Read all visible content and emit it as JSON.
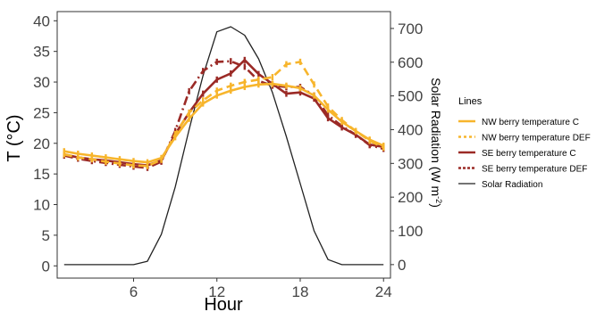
{
  "chart_data": {
    "type": "line",
    "xlabel": "Hour",
    "ylabel_left": "T (°C)",
    "ylabel_right_main": "Solar Radiation (W m",
    "ylabel_right_sup": "-2",
    "ylabel_right_close": ")",
    "xlim": [
      0.5,
      24.5
    ],
    "ylim_left": [
      -2,
      41.5
    ],
    "ylim_right": [
      -40,
      750
    ],
    "x_ticks": [
      6,
      12,
      18,
      24
    ],
    "y_left_ticks": [
      0,
      5,
      10,
      15,
      20,
      25,
      30,
      35,
      40
    ],
    "y_right_ticks": [
      0,
      100,
      200,
      300,
      400,
      500,
      600,
      700
    ],
    "grid": false,
    "legend": {
      "title": "Lines",
      "placement": "right",
      "entries": [
        {
          "label": "NW berry temperature C",
          "series": 0
        },
        {
          "label": "NW berry temperature DEF",
          "series": 1
        },
        {
          "label": "SE berry temperature C",
          "series": 2
        },
        {
          "label": "SE berry temperature DEF",
          "series": 3
        },
        {
          "label": "Solar Radiation",
          "series": 4
        }
      ]
    },
    "series": [
      {
        "name": "NW berry temperature C",
        "axis": "left",
        "color": "#f7b52c",
        "style": "solid",
        "x": [
          1,
          2,
          3,
          4,
          5,
          6,
          7,
          8,
          9,
          10,
          11,
          12,
          13,
          14,
          15,
          16,
          17,
          18,
          19,
          20,
          21,
          22,
          23,
          24
        ],
        "y": [
          18.7,
          18.3,
          18.0,
          17.7,
          17.4,
          17.1,
          16.9,
          17.6,
          21.0,
          24.0,
          26.5,
          27.8,
          28.6,
          29.2,
          29.6,
          29.7,
          29.4,
          29.0,
          27.8,
          25.5,
          23.5,
          22.0,
          20.6,
          19.6
        ]
      },
      {
        "name": "NW berry temperature DEF",
        "axis": "left",
        "color": "#f7b52c",
        "style": "dash",
        "x": [
          1,
          2,
          3,
          4,
          5,
          6,
          7,
          8,
          9,
          10,
          11,
          12,
          13,
          14,
          15,
          16,
          17,
          18,
          19,
          20,
          21,
          22,
          23,
          24
        ],
        "y": [
          18.2,
          17.7,
          17.4,
          17.0,
          16.7,
          16.4,
          16.3,
          17.3,
          21.5,
          25.0,
          27.0,
          28.6,
          29.4,
          30.0,
          30.4,
          30.8,
          32.9,
          33.3,
          29.6,
          26.0,
          23.8,
          22.0,
          20.4,
          19.3
        ]
      },
      {
        "name": "SE berry temperature C",
        "axis": "left",
        "color": "#9b2a26",
        "style": "solid",
        "x": [
          1,
          2,
          3,
          4,
          5,
          6,
          7,
          8,
          9,
          10,
          11,
          12,
          13,
          14,
          15,
          16,
          17,
          18,
          19,
          20,
          21,
          22,
          23,
          24
        ],
        "y": [
          18.2,
          17.7,
          17.4,
          17.2,
          16.9,
          16.6,
          16.4,
          17.2,
          21.5,
          25.0,
          28.1,
          30.4,
          31.4,
          33.6,
          31.3,
          29.7,
          28.1,
          28.3,
          27.3,
          24.1,
          22.6,
          21.4,
          19.8,
          19.4
        ]
      },
      {
        "name": "SE berry temperature DEF",
        "axis": "left",
        "color": "#9b2a26",
        "style": "dashdot",
        "x": [
          1,
          2,
          3,
          4,
          5,
          6,
          7,
          8,
          9,
          10,
          11,
          12,
          13,
          14,
          15,
          16,
          17,
          18,
          19,
          20,
          21,
          22,
          23,
          24
        ],
        "y": [
          18.0,
          17.5,
          17.1,
          16.8,
          16.5,
          16.2,
          16.0,
          17.0,
          22.0,
          28.5,
          31.8,
          33.3,
          33.4,
          32.5,
          30.2,
          29.4,
          29.2,
          29.2,
          27.8,
          24.6,
          22.8,
          21.4,
          19.7,
          19.1
        ]
      },
      {
        "name": "Solar Radiation",
        "axis": "right",
        "color": "#222222",
        "style": "solid",
        "x": [
          1,
          2,
          3,
          4,
          5,
          6,
          7,
          8,
          9,
          10,
          11,
          12,
          13,
          14,
          15,
          16,
          17,
          18,
          19,
          20,
          21,
          22,
          23,
          24
        ],
        "y": [
          0,
          0,
          0,
          0,
          0,
          0,
          10,
          90,
          230,
          400,
          560,
          690,
          705,
          680,
          610,
          510,
          380,
          240,
          100,
          15,
          0,
          0,
          0,
          0
        ]
      }
    ]
  }
}
